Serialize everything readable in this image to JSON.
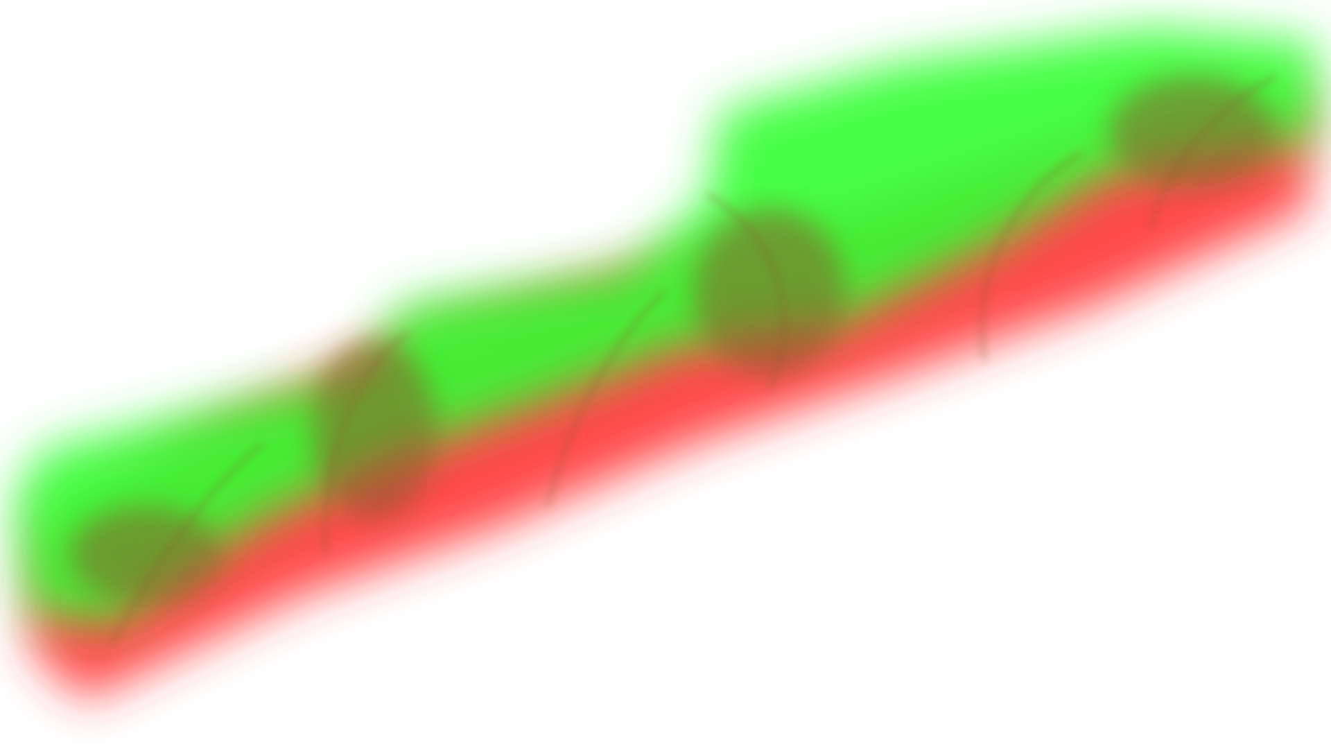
{
  "visualization": {
    "type": "volume-rendering",
    "background_color": "#ffffff",
    "colors": {
      "field_a": "#33ff33",
      "field_b": "#ff2a2a",
      "mixed": "#8a5a2a"
    },
    "lobe_count": 4
  }
}
